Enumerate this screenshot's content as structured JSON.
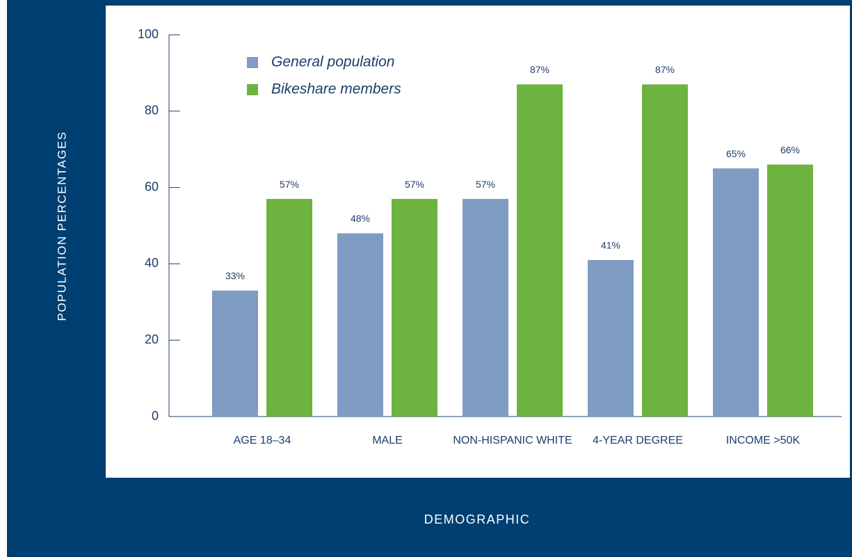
{
  "chart_data": {
    "type": "bar",
    "x_label": "DEMOGRAPHIC",
    "y_label": "POPULATION PERCENTAGES",
    "categories": [
      "AGE 18–34",
      "MALE",
      "NON-HISPANIC WHITE",
      "4-YEAR DEGREE",
      "INCOME >50K"
    ],
    "series": [
      {
        "name": "General population",
        "color": "#7f9cc3",
        "values": [
          33,
          48,
          57,
          41,
          65
        ],
        "value_labels": [
          "33%",
          "48%",
          "57%",
          "41%",
          "65%"
        ]
      },
      {
        "name": "Bikeshare members",
        "color": "#6db33f",
        "values": [
          57,
          57,
          87,
          87,
          66
        ],
        "value_labels": [
          "57%",
          "57%",
          "87%",
          "87%",
          "66%"
        ]
      }
    ],
    "ylim": [
      0,
      100
    ],
    "yticks": [
      0,
      20,
      40,
      60,
      80,
      100
    ],
    "grid": false,
    "legend": "upper left"
  }
}
